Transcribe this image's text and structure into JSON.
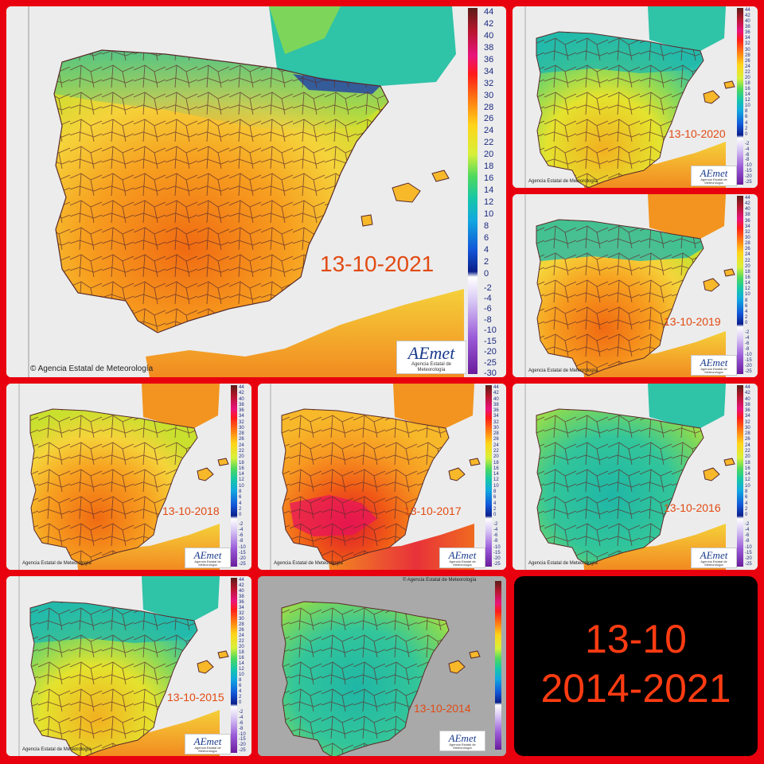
{
  "main": {
    "date": "13-10-2021",
    "credit": "© Agencia Estatal de Meteorología",
    "logo_brand": "AEmet",
    "logo_sub": "Agencia Estatal de Meteorología",
    "scale_positive": [
      "44",
      "42",
      "40",
      "38",
      "36",
      "34",
      "32",
      "30",
      "28",
      "26",
      "24",
      "22",
      "20",
      "18",
      "16",
      "14",
      "12",
      "10",
      "8",
      "6",
      "4",
      "2",
      "0"
    ],
    "scale_negative": [
      "-2",
      "-4",
      "-6",
      "-8",
      "-10",
      "-15",
      "-20",
      "-25",
      "-30"
    ]
  },
  "small_scale_positive": [
    "44",
    "42",
    "40",
    "38",
    "36",
    "34",
    "32",
    "30",
    "28",
    "26",
    "24",
    "22",
    "20",
    "18",
    "16",
    "14",
    "12",
    "10",
    "8",
    "6",
    "4",
    "2",
    "0"
  ],
  "small_scale_negative": [
    "-2",
    "-4",
    "-6",
    "-8",
    "-10",
    "-15",
    "-20",
    "-25"
  ],
  "panels": [
    {
      "date": "13-10-2020",
      "credit": "Agencia Estatal de Meteorología",
      "logo_brand": "AEmet",
      "logo_sub": "Agencia Estatal de Meteorología"
    },
    {
      "date": "13-10-2019",
      "credit": "Agencia Estatal de Meteorología",
      "logo_brand": "AEmet",
      "logo_sub": "Agencia Estatal de Meteorología"
    },
    {
      "date": "13-10-2018",
      "credit": "Agencia Estatal de Meteorología",
      "logo_brand": "AEmet",
      "logo_sub": "Agencia Estatal de Meteorología"
    },
    {
      "date": "13-10-2017",
      "credit": "Agencia Estatal de Meteorología",
      "logo_brand": "AEmet",
      "logo_sub": "Agencia Estatal de Meteorología"
    },
    {
      "date": "13-10-2016",
      "credit": "Agencia Estatal de Meteorología",
      "logo_brand": "AEmet",
      "logo_sub": "Agencia Estatal de Meteorología"
    },
    {
      "date": "13-10-2015",
      "credit": "Agencia Estatal de Meteorología",
      "logo_brand": "AEmet",
      "logo_sub": "Agencia Estatal de Meteorología"
    },
    {
      "date": "13-10-2014",
      "credit": "© Agencia Estatal de Meteorología",
      "logo_brand": "AEmet",
      "logo_sub": "Agencia Estatal de Meteorología"
    }
  ],
  "summary": {
    "line1": "13-10",
    "line2": "2014-2021"
  },
  "colors": {
    "frame": "#e8000f",
    "sea": "#ececec",
    "date_text": "#e24a12",
    "summary_bg": "#000000",
    "summary_text": "#ff3b12",
    "warm": "#f2941f",
    "hot": "#e3361a",
    "mild": "#d9e82a",
    "cool": "#2fbfb0",
    "cold": "#1f3fa8"
  }
}
